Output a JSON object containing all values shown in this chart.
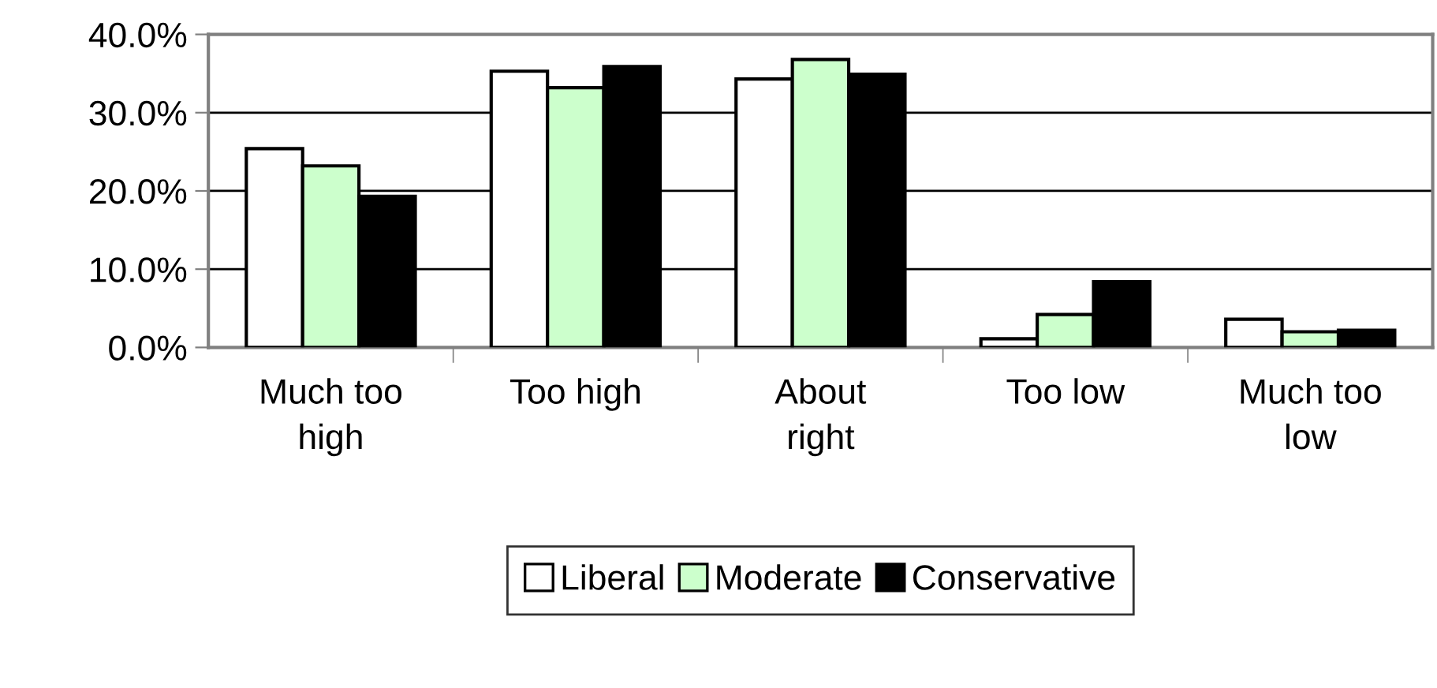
{
  "chart_data": {
    "type": "bar",
    "categories": [
      "Much too high",
      "Too high",
      "About right",
      "Too low",
      "Much too low"
    ],
    "series": [
      {
        "name": "Liberal",
        "color": "#ffffff",
        "values": [
          25.4,
          35.3,
          34.3,
          1.1,
          3.6
        ]
      },
      {
        "name": "Moderate",
        "color": "#ccffcc",
        "values": [
          23.2,
          33.2,
          36.8,
          4.2,
          2.0
        ]
      },
      {
        "name": "Conservative",
        "color": "#000000",
        "values": [
          19.3,
          35.9,
          34.9,
          8.4,
          2.2
        ]
      }
    ],
    "ylim": [
      0,
      40
    ],
    "yticks": [
      {
        "value": 0,
        "label": "0.0%"
      },
      {
        "value": 10,
        "label": "10.0%"
      },
      {
        "value": 20,
        "label": "20.0%"
      },
      {
        "value": 30,
        "label": "30.0%"
      },
      {
        "value": 40,
        "label": "40.0%"
      }
    ],
    "grid": "y",
    "legend": "bottom"
  }
}
